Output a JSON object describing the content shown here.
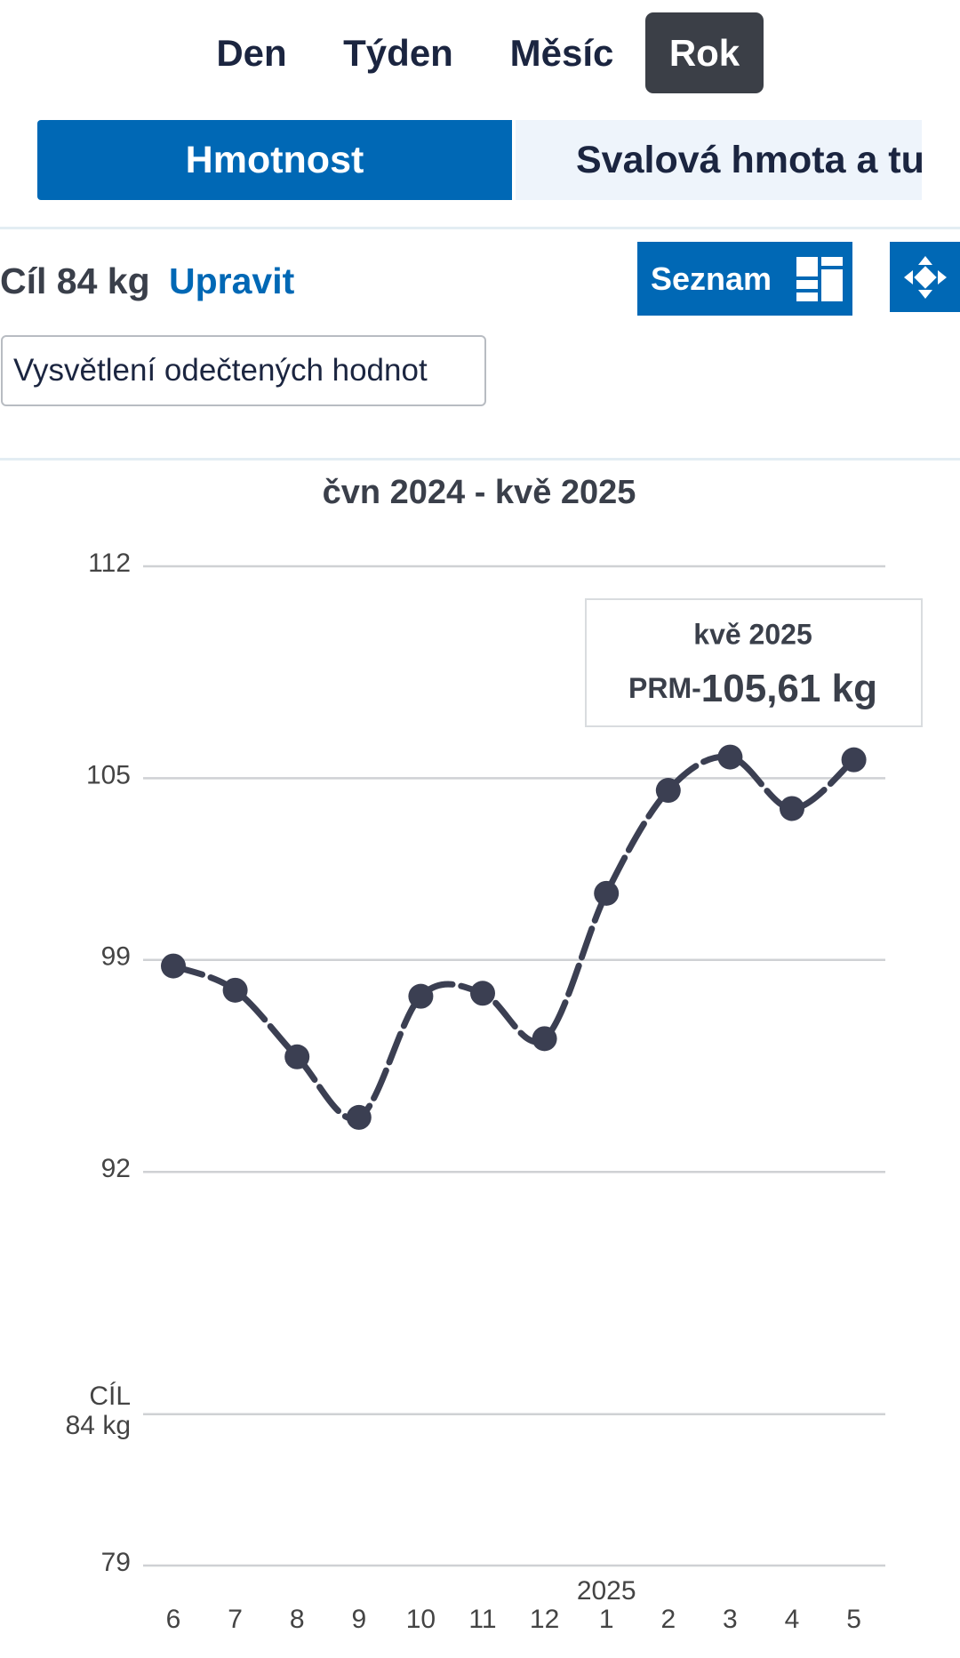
{
  "tabs": {
    "periods": [
      "Den",
      "Týden",
      "Měsíc",
      "Rok"
    ],
    "metrics": [
      "Hmotnost",
      "Svalová hmota a tuk"
    ]
  },
  "goal": {
    "label": "Cíl 84 kg",
    "edit": "Upravit"
  },
  "buttons": {
    "list": "Seznam",
    "explain": "Vysvětlení odečtených hodnot"
  },
  "chart_data": {
    "type": "line",
    "title": "čvn 2024 - kvě 2025",
    "categories": [
      "6",
      "7",
      "8",
      "9",
      "10",
      "11",
      "12",
      "1",
      "2",
      "3",
      "4",
      "5"
    ],
    "year_marker": "2025",
    "series": [
      {
        "name": "Hmotnost",
        "color": "#3b3f52",
        "values": [
          98.8,
          98.0,
          95.8,
          93.8,
          97.8,
          97.9,
          96.4,
          101.2,
          104.6,
          105.7,
          104.0,
          105.61
        ]
      }
    ],
    "ylim": [
      79,
      112
    ],
    "yticks": [
      79,
      {
        "value": 84,
        "label": "CÍL\n84 kg"
      },
      92,
      99,
      105,
      112
    ],
    "grid": true,
    "tooltip": {
      "title": "kvě 2025",
      "prefix": "PRM-",
      "value": "105,61 kg"
    }
  }
}
